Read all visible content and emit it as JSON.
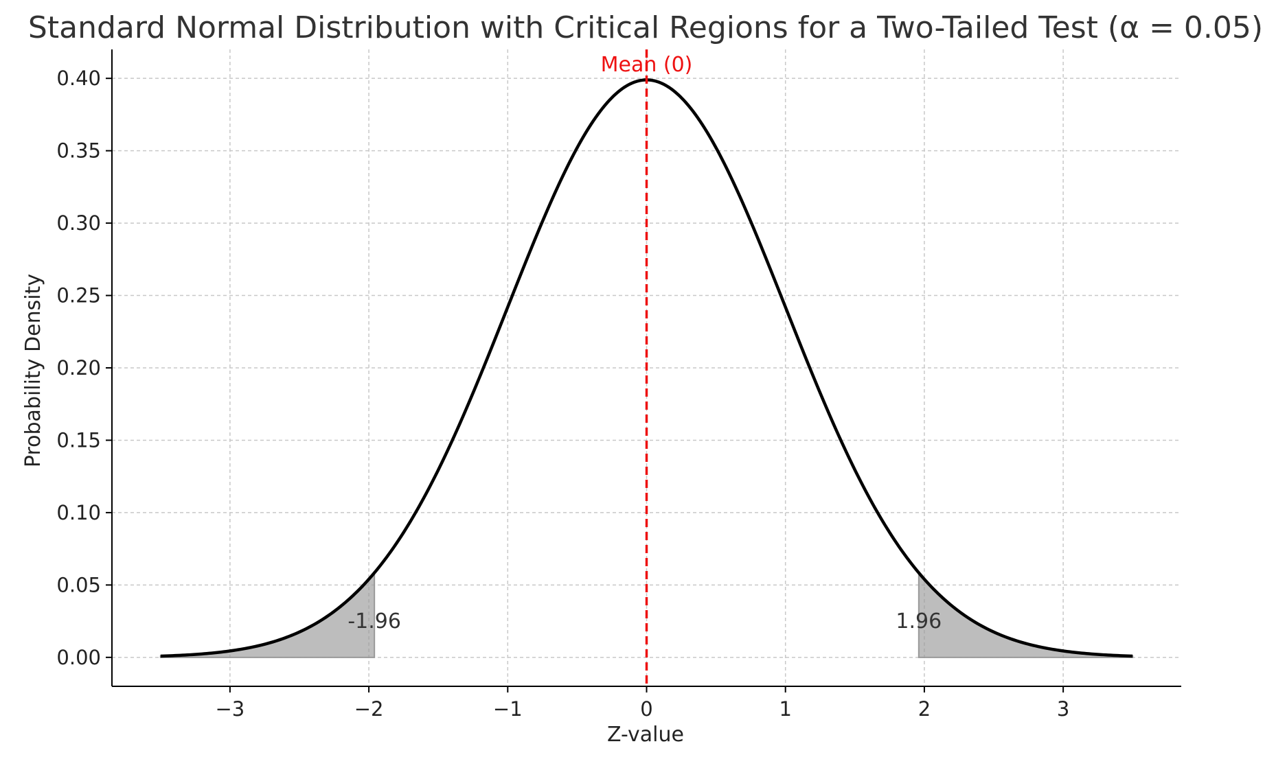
{
  "chart_data": {
    "type": "line",
    "title": "Standard Normal Distribution with Critical Regions for a Two-Tailed Test (α = 0.05)",
    "xlabel": "Z-value",
    "ylabel": "Probability Density",
    "xlim": [
      -3.85,
      3.85
    ],
    "ylim": [
      -0.02,
      0.42
    ],
    "xticks": [
      -3,
      -2,
      -1,
      0,
      1,
      2,
      3
    ],
    "xtick_labels": [
      "−3",
      "−2",
      "−1",
      "0",
      "1",
      "2",
      "3"
    ],
    "yticks": [
      0.0,
      0.05,
      0.1,
      0.15,
      0.2,
      0.25,
      0.3,
      0.35,
      0.4
    ],
    "ytick_labels": [
      "0.00",
      "0.05",
      "0.10",
      "0.15",
      "0.20",
      "0.25",
      "0.30",
      "0.35",
      "0.40"
    ],
    "grid": true,
    "series": [
      {
        "function": "standard-normal-pdf",
        "x_range": [
          -3.5,
          3.5
        ],
        "color": "#000000"
      }
    ],
    "shaded_regions": [
      {
        "x_range": [
          -3.5,
          -1.96
        ],
        "color": "#999999"
      },
      {
        "x_range": [
          1.96,
          3.5
        ],
        "color": "#999999"
      }
    ],
    "vline": {
      "x": 0,
      "color": "#ee1111",
      "style": "dashed",
      "label": "Mean (0)"
    },
    "annotations": [
      {
        "text": "-1.96",
        "x": -1.96,
        "y": 0.025
      },
      {
        "text": "1.96",
        "x": 1.96,
        "y": 0.025
      }
    ]
  }
}
